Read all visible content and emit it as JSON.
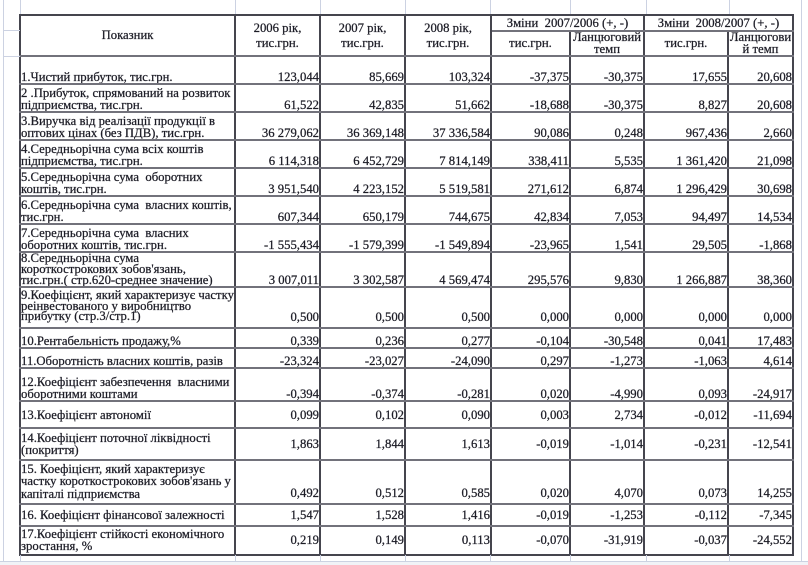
{
  "table": {
    "header": {
      "indicator": "Показник",
      "year_2006": "2006 рік,\nтис.грн.",
      "year_2007": "2007 рік,\nтис.грн.",
      "year_2008": "2008 рік,\nтис.грн.",
      "change_2007_2006": "Зміни  2007/2006 (+, -)",
      "change_2008_2007": "Зміни  2008/2007 (+, -)",
      "sub_thousand_uah_1": "тис.грн.",
      "sub_chain_rate_1": "Ланцюговий\nтемп",
      "sub_thousand_uah_2": "тис.грн.",
      "sub_chain_rate_2": "Ланцюгови\nй темп"
    },
    "rows": [
      {
        "label": "1.Чистий прибуток, тис.грн.",
        "values": [
          "123,044",
          "85,669",
          "103,324",
          "-37,375",
          "-30,375",
          "17,655",
          "20,608"
        ]
      },
      {
        "label": "2 .Прибуток, спрямований на розвиток\nпідприємства, тис.грн.",
        "values": [
          "61,522",
          "42,835",
          "51,662",
          "-18,688",
          "-30,375",
          "8,827",
          "20,608"
        ]
      },
      {
        "label": "3.Виручка від реалізації продукції в\nоптових цінах (без ПДВ), тис.грн.",
        "values": [
          "36 279,062",
          "36 369,148",
          "37 336,584",
          "90,086",
          "0,248",
          "967,436",
          "2,660"
        ]
      },
      {
        "label": "4.Середньорічна сума всіх коштів\nпідприємства, тис.грн.",
        "values": [
          "6 114,318",
          "6 452,729",
          "7 814,149",
          "338,411",
          "5,535",
          "1 361,420",
          "21,098"
        ]
      },
      {
        "label": "5.Середньорічна сума  оборотних\nкоштів, тис.грн.",
        "values": [
          "3 951,540",
          "4 223,152",
          "5 519,581",
          "271,612",
          "6,874",
          "1 296,429",
          "30,698"
        ]
      },
      {
        "label": "6.Середньорічна сума  власних коштів,\nтис.грн.",
        "values": [
          "607,344",
          "650,179",
          "744,675",
          "42,834",
          "7,053",
          "94,497",
          "14,534"
        ]
      },
      {
        "label": "7.Середньорічна сума  власних\nоборотних коштів, тис.грн.",
        "values": [
          "-1 555,434",
          "-1 579,399",
          "-1 549,894",
          "-23,965",
          "1,541",
          "29,505",
          "-1,868"
        ]
      },
      {
        "label": "8.Середньорічна сума\nкороткострокових зобов'язань,\nтис.грн.( стр.620-среднее значение)",
        "values": [
          "3 007,011",
          "3 302,587",
          "4 569,474",
          "295,576",
          "9,830",
          "1 266,887",
          "38,360"
        ]
      },
      {
        "label": "9.Коефіцієнт, який характеризує частку\nреінвестованого у виробництво\nприбутку (стр.3/стр.1)",
        "values": [
          "0,500",
          "0,500",
          "0,500",
          "0,000",
          "0,000",
          "0,000",
          "0,000"
        ]
      },
      {
        "label": "10.Рентабельність продажу,%",
        "values": [
          "0,339",
          "0,236",
          "0,277",
          "-0,104",
          "-30,548",
          "0,041",
          "17,483"
        ]
      },
      {
        "label": "11.Оборотність власних коштів, разів",
        "values": [
          "-23,324",
          "-23,027",
          "-24,090",
          "0,297",
          "-1,273",
          "-1,063",
          "4,614"
        ]
      },
      {
        "label": "12.Коефіцієнт забезпечення  власними\nоборотними коштами",
        "values": [
          "-0,394",
          "-0,374",
          "-0,281",
          "0,020",
          "-4,990",
          "0,093",
          "-24,917"
        ]
      },
      {
        "label": "13.Коефіцієнт автономії",
        "values": [
          "0,099",
          "0,102",
          "0,090",
          "0,003",
          "2,734",
          "-0,012",
          "-11,694"
        ]
      },
      {
        "label": "14.Коефіцієнт поточної ліквідності\n(покриття)",
        "values": [
          "1,863",
          "1,844",
          "1,613",
          "-0,019",
          "-1,014",
          "-0,231",
          "-12,541"
        ]
      },
      {
        "label": "15. Коефіцієнт, який характеризує\nчастку короткострокових зобов'язань у\nкапіталі підприємства",
        "values": [
          "0,492",
          "0,512",
          "0,585",
          "0,020",
          "4,070",
          "0,073",
          "14,255"
        ]
      },
      {
        "label": "16. Коефіцієнт фінансової залежності",
        "values": [
          "1,547",
          "1,528",
          "1,416",
          "-0,019",
          "-1,253",
          "-0,112",
          "-7,345"
        ]
      },
      {
        "label": "17.Коефіцієнт стійкості економічного\nзростання, %",
        "values": [
          "0,219",
          "0,149",
          "0,113",
          "-0,070",
          "-31,919",
          "-0,037",
          "-24,552"
        ]
      }
    ]
  }
}
